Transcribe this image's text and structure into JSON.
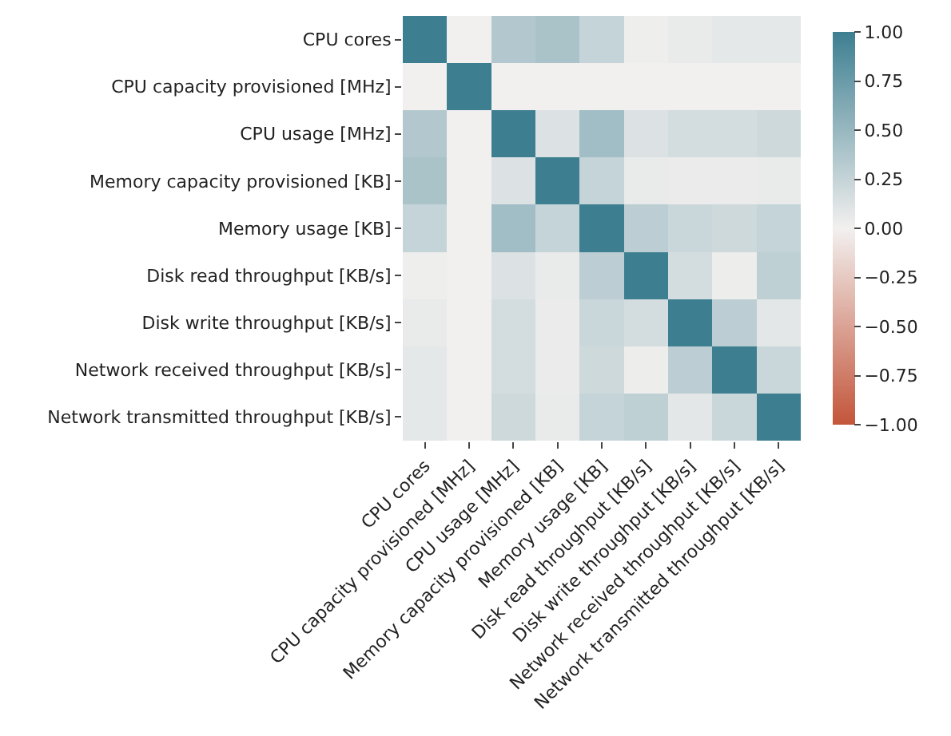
{
  "chart_data": {
    "type": "heatmap",
    "categories": [
      "CPU cores",
      "CPU capacity provisioned [MHz]",
      "CPU usage [MHz]",
      "Memory capacity provisioned [KB]",
      "Memory usage [KB]",
      "Disk read throughput [KB/s]",
      "Disk write throughput [KB/s]",
      "Network received throughput [KB/s]",
      "Network transmitted throughput [KB/s]"
    ],
    "y_categories": [
      "CPU cores",
      "CPU capacity provisioned [MHz]",
      "CPU usage [MHz]",
      "Memory capacity provisioned [KB]",
      "Memory usage [KB]",
      "Disk read throughput [KB/s]",
      "Disk write throughput [KB/s]",
      "Network received throughput [KB/s]",
      "Network transmitted throughput [KB/s]"
    ],
    "cells": [
      [
        1,
        0,
        0.35,
        0.4,
        0.25,
        0.02,
        0.05,
        0.07,
        0.07
      ],
      [
        0,
        1,
        0,
        0,
        0,
        0,
        0,
        0,
        0
      ],
      [
        0.35,
        0,
        1,
        0.12,
        0.45,
        0.12,
        0.17,
        0.17,
        0.2
      ],
      [
        0.4,
        0,
        0.12,
        1,
        0.25,
        0.05,
        0.04,
        0.04,
        0.05
      ],
      [
        0.25,
        0,
        0.45,
        0.25,
        1,
        0.3,
        0.22,
        0.2,
        0.25
      ],
      [
        0.02,
        0,
        0.12,
        0.05,
        0.3,
        1,
        0.17,
        0.03,
        0.28
      ],
      [
        0.05,
        0,
        0.17,
        0.04,
        0.22,
        0.17,
        1,
        0.3,
        0.08
      ],
      [
        0.07,
        0,
        0.17,
        0.04,
        0.2,
        0.03,
        0.3,
        1,
        0.22
      ],
      [
        0.07,
        0,
        0.2,
        0.05,
        0.25,
        0.28,
        0.08,
        0.22,
        1
      ]
    ],
    "clim": [
      -1,
      1
    ],
    "cticks": [
      {
        "value": 1,
        "label": "1.00"
      },
      {
        "value": 0.75,
        "label": "0.75"
      },
      {
        "value": 0.5,
        "label": "0.50"
      },
      {
        "value": 0.25,
        "label": "0.25"
      },
      {
        "value": 0,
        "label": "0.00"
      },
      {
        "value": -0.25,
        "label": "−0.25"
      },
      {
        "value": -0.5,
        "label": "−0.50"
      },
      {
        "value": -0.75,
        "label": "−0.75"
      },
      {
        "value": -1,
        "label": "−1.00"
      }
    ]
  }
}
